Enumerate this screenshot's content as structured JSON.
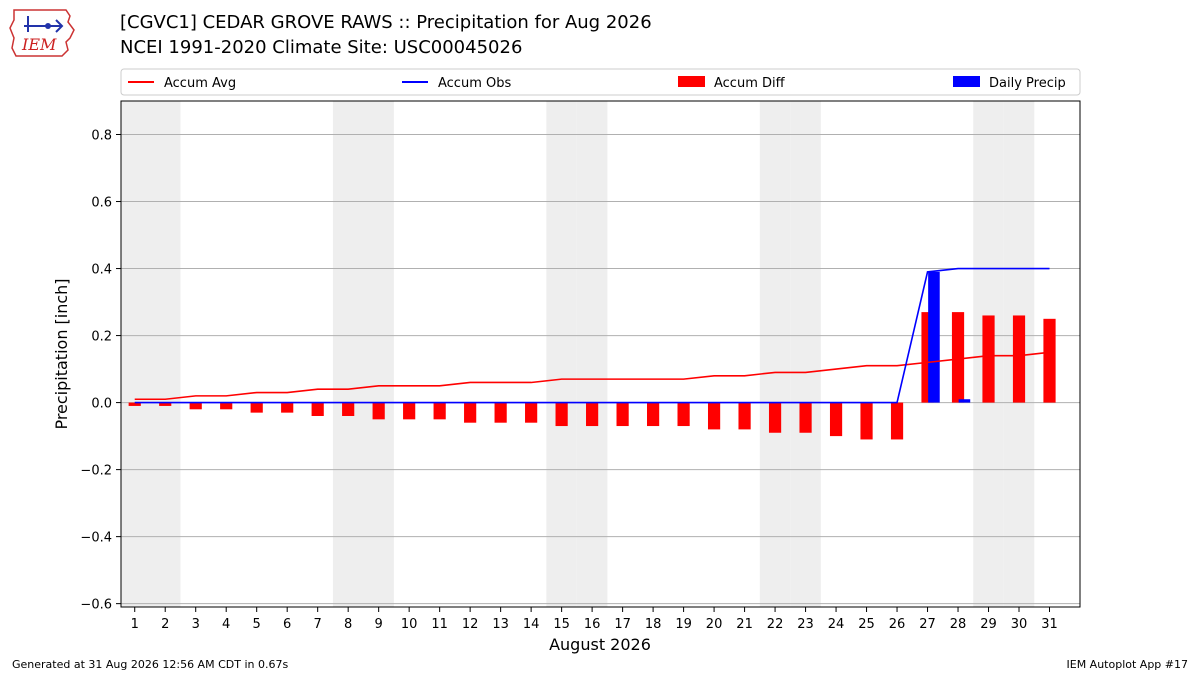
{
  "header": {
    "logo_text": "IEM",
    "title": "[CGVC1] CEDAR GROVE RAWS :: Precipitation for Aug 2026",
    "subtitle": "NCEI 1991-2020 Climate Site: USC00045026"
  },
  "footer": {
    "generated": "Generated at 31 Aug 2026 12:56 AM CDT in 0.67s",
    "app": "IEM Autoplot App #17"
  },
  "colors": {
    "avg": "#ff0000",
    "obs": "#0000ff",
    "diff": "#ff0000",
    "daily": "#0000ff",
    "weekend": "#eeeeee",
    "grid": "#b0b0b0"
  },
  "chart_data": {
    "type": "bar",
    "xlabel": "August 2026",
    "ylabel": "Precipitation [inch]",
    "ylim": [
      -0.61,
      0.9
    ],
    "yticks": [
      -0.6,
      -0.4,
      -0.2,
      0.0,
      0.2,
      0.4,
      0.6,
      0.8
    ],
    "ytick_labels": [
      "−0.6",
      "−0.4",
      "−0.2",
      "0.0",
      "0.2",
      "0.4",
      "0.6",
      "0.8"
    ],
    "grid": true,
    "legend_position": "top",
    "categories": [
      "1",
      "2",
      "3",
      "4",
      "5",
      "6",
      "7",
      "8",
      "9",
      "10",
      "11",
      "12",
      "13",
      "14",
      "15",
      "16",
      "17",
      "18",
      "19",
      "20",
      "21",
      "22",
      "23",
      "24",
      "25",
      "26",
      "27",
      "28",
      "29",
      "30",
      "31"
    ],
    "weekend_days": [
      1,
      2,
      8,
      9,
      15,
      16,
      22,
      23,
      29,
      30
    ],
    "legend": [
      "Accum Avg",
      "Accum Obs",
      "Accum Diff",
      "Daily Precip"
    ],
    "series": [
      {
        "name": "Accum Avg",
        "kind": "line",
        "values": [
          0.01,
          0.01,
          0.02,
          0.02,
          0.03,
          0.03,
          0.04,
          0.04,
          0.05,
          0.05,
          0.05,
          0.06,
          0.06,
          0.06,
          0.07,
          0.07,
          0.07,
          0.07,
          0.07,
          0.08,
          0.08,
          0.09,
          0.09,
          0.1,
          0.11,
          0.11,
          0.12,
          0.13,
          0.14,
          0.14,
          0.15
        ]
      },
      {
        "name": "Accum Obs",
        "kind": "line",
        "values": [
          0,
          0,
          0,
          0,
          0,
          0,
          0,
          0,
          0,
          0,
          0,
          0,
          0,
          0,
          0,
          0,
          0,
          0,
          0,
          0,
          0,
          0,
          0,
          0,
          0,
          0,
          0.39,
          0.4,
          0.4,
          0.4,
          0.4
        ]
      },
      {
        "name": "Accum Diff",
        "kind": "bar",
        "values": [
          -0.01,
          -0.01,
          -0.02,
          -0.02,
          -0.03,
          -0.03,
          -0.04,
          -0.04,
          -0.05,
          -0.05,
          -0.05,
          -0.06,
          -0.06,
          -0.06,
          -0.07,
          -0.07,
          -0.07,
          -0.07,
          -0.07,
          -0.08,
          -0.08,
          -0.09,
          -0.09,
          -0.1,
          -0.11,
          -0.11,
          0.27,
          0.27,
          0.26,
          0.26,
          0.25
        ]
      },
      {
        "name": "Daily Precip",
        "kind": "bar",
        "values": [
          0,
          0,
          0,
          0,
          0,
          0,
          0,
          0,
          0,
          0,
          0,
          0,
          0,
          0,
          0,
          0,
          0,
          0,
          0,
          0,
          0,
          0,
          0,
          0,
          0,
          0,
          0.39,
          0.01,
          0,
          0,
          0
        ]
      }
    ]
  }
}
